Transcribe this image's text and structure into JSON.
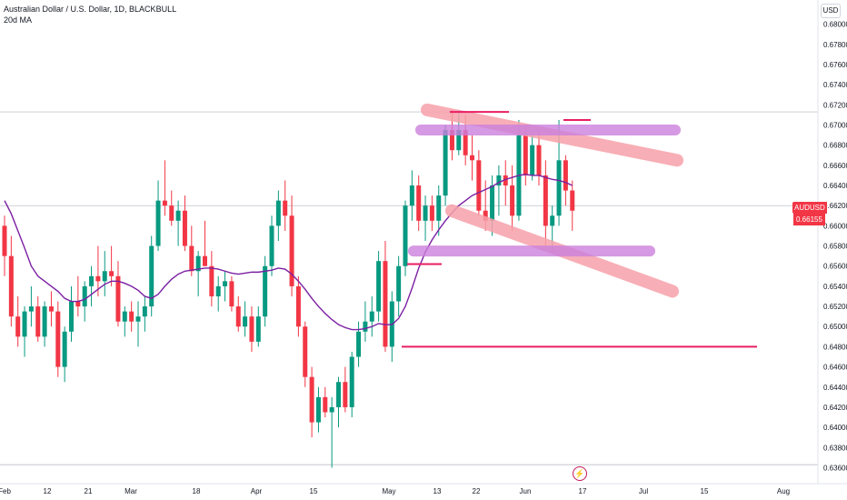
{
  "legend": {
    "title": "Australian Dollar / U.S. Dollar, 1D, BLACKBULL",
    "indicator": "20d MA"
  },
  "currency_button": "USD",
  "price_tag": {
    "symbol": "AUDUSD",
    "value": "0.66155"
  },
  "icons": {
    "flash": "lightning-icon"
  },
  "colors": {
    "up": "#089981",
    "down": "#f23645",
    "ma": "#7b1fa2",
    "pink_band": "#f7a1aa",
    "purple_band": "#cc80dd",
    "red_line": "#e91e63"
  },
  "chart_data": {
    "type": "candlestick",
    "y_axis": {
      "min": 0.6355,
      "max": 0.6815,
      "tick_labels": [
        "0.68000",
        "0.67800",
        "0.67600",
        "0.67400",
        "0.67200",
        "0.67000",
        "0.66800",
        "0.66600",
        "0.66400",
        "0.66200",
        "0.66000",
        "0.65800",
        "0.65600",
        "0.65400",
        "0.65200",
        "0.65000",
        "0.64800",
        "0.64600",
        "0.64400",
        "0.64200",
        "0.64000",
        "0.63800",
        "0.63600",
        "0.63400"
      ]
    },
    "x_axis": {
      "tick_labels": [
        "Feb",
        "12",
        "21",
        "Mar",
        "18",
        "Apr",
        "15",
        "May",
        "13",
        "22",
        "Jun",
        "17",
        "Jul",
        "15",
        "Aug"
      ]
    },
    "candles": [
      {
        "o": 0.66,
        "h": 0.661,
        "l": 0.655,
        "c": 0.657
      },
      {
        "o": 0.657,
        "h": 0.659,
        "l": 0.65,
        "c": 0.651
      },
      {
        "o": 0.651,
        "h": 0.653,
        "l": 0.648,
        "c": 0.649
      },
      {
        "o": 0.649,
        "h": 0.652,
        "l": 0.647,
        "c": 0.6515
      },
      {
        "o": 0.6515,
        "h": 0.654,
        "l": 0.65,
        "c": 0.652
      },
      {
        "o": 0.652,
        "h": 0.653,
        "l": 0.6485,
        "c": 0.649
      },
      {
        "o": 0.649,
        "h": 0.6525,
        "l": 0.648,
        "c": 0.652
      },
      {
        "o": 0.652,
        "h": 0.6535,
        "l": 0.65,
        "c": 0.6515
      },
      {
        "o": 0.6515,
        "h": 0.6525,
        "l": 0.645,
        "c": 0.646
      },
      {
        "o": 0.646,
        "h": 0.65,
        "l": 0.6445,
        "c": 0.6495
      },
      {
        "o": 0.6495,
        "h": 0.654,
        "l": 0.6485,
        "c": 0.6525
      },
      {
        "o": 0.6525,
        "h": 0.655,
        "l": 0.651,
        "c": 0.652
      },
      {
        "o": 0.652,
        "h": 0.6545,
        "l": 0.6505,
        "c": 0.654
      },
      {
        "o": 0.654,
        "h": 0.656,
        "l": 0.652,
        "c": 0.655
      },
      {
        "o": 0.655,
        "h": 0.658,
        "l": 0.653,
        "c": 0.6545
      },
      {
        "o": 0.6545,
        "h": 0.6575,
        "l": 0.653,
        "c": 0.6555
      },
      {
        "o": 0.6555,
        "h": 0.658,
        "l": 0.654,
        "c": 0.655
      },
      {
        "o": 0.655,
        "h": 0.6565,
        "l": 0.65,
        "c": 0.6505
      },
      {
        "o": 0.6505,
        "h": 0.652,
        "l": 0.649,
        "c": 0.6515
      },
      {
        "o": 0.6515,
        "h": 0.6525,
        "l": 0.6495,
        "c": 0.6505
      },
      {
        "o": 0.6505,
        "h": 0.6525,
        "l": 0.648,
        "c": 0.651
      },
      {
        "o": 0.651,
        "h": 0.653,
        "l": 0.6495,
        "c": 0.652
      },
      {
        "o": 0.652,
        "h": 0.659,
        "l": 0.651,
        "c": 0.658
      },
      {
        "o": 0.658,
        "h": 0.6645,
        "l": 0.6575,
        "c": 0.6625
      },
      {
        "o": 0.6625,
        "h": 0.6665,
        "l": 0.661,
        "c": 0.662
      },
      {
        "o": 0.662,
        "h": 0.6635,
        "l": 0.66,
        "c": 0.6605
      },
      {
        "o": 0.6605,
        "h": 0.6625,
        "l": 0.658,
        "c": 0.6615
      },
      {
        "o": 0.6615,
        "h": 0.663,
        "l": 0.6575,
        "c": 0.658
      },
      {
        "o": 0.658,
        "h": 0.66,
        "l": 0.655,
        "c": 0.6555
      },
      {
        "o": 0.6555,
        "h": 0.6575,
        "l": 0.653,
        "c": 0.657
      },
      {
        "o": 0.657,
        "h": 0.6605,
        "l": 0.656,
        "c": 0.656
      },
      {
        "o": 0.656,
        "h": 0.6575,
        "l": 0.652,
        "c": 0.653
      },
      {
        "o": 0.653,
        "h": 0.655,
        "l": 0.6515,
        "c": 0.654
      },
      {
        "o": 0.654,
        "h": 0.6555,
        "l": 0.6525,
        "c": 0.6545
      },
      {
        "o": 0.6545,
        "h": 0.655,
        "l": 0.6515,
        "c": 0.652
      },
      {
        "o": 0.652,
        "h": 0.653,
        "l": 0.6495,
        "c": 0.65
      },
      {
        "o": 0.65,
        "h": 0.6525,
        "l": 0.649,
        "c": 0.651
      },
      {
        "o": 0.651,
        "h": 0.652,
        "l": 0.6475,
        "c": 0.6485
      },
      {
        "o": 0.6485,
        "h": 0.652,
        "l": 0.648,
        "c": 0.651
      },
      {
        "o": 0.651,
        "h": 0.657,
        "l": 0.65,
        "c": 0.656
      },
      {
        "o": 0.656,
        "h": 0.661,
        "l": 0.655,
        "c": 0.66
      },
      {
        "o": 0.66,
        "h": 0.6635,
        "l": 0.6585,
        "c": 0.6625
      },
      {
        "o": 0.6625,
        "h": 0.6645,
        "l": 0.6595,
        "c": 0.661
      },
      {
        "o": 0.661,
        "h": 0.663,
        "l": 0.653,
        "c": 0.654
      },
      {
        "o": 0.654,
        "h": 0.655,
        "l": 0.649,
        "c": 0.65
      },
      {
        "o": 0.65,
        "h": 0.6505,
        "l": 0.644,
        "c": 0.645
      },
      {
        "o": 0.645,
        "h": 0.646,
        "l": 0.639,
        "c": 0.6405
      },
      {
        "o": 0.6405,
        "h": 0.644,
        "l": 0.6395,
        "c": 0.643
      },
      {
        "o": 0.643,
        "h": 0.644,
        "l": 0.641,
        "c": 0.6415
      },
      {
        "o": 0.6415,
        "h": 0.643,
        "l": 0.636,
        "c": 0.642
      },
      {
        "o": 0.642,
        "h": 0.645,
        "l": 0.64,
        "c": 0.6445
      },
      {
        "o": 0.6445,
        "h": 0.646,
        "l": 0.6415,
        "c": 0.642
      },
      {
        "o": 0.642,
        "h": 0.6475,
        "l": 0.641,
        "c": 0.647
      },
      {
        "o": 0.647,
        "h": 0.6505,
        "l": 0.646,
        "c": 0.6495
      },
      {
        "o": 0.6495,
        "h": 0.6525,
        "l": 0.6485,
        "c": 0.6505
      },
      {
        "o": 0.6505,
        "h": 0.653,
        "l": 0.649,
        "c": 0.6515
      },
      {
        "o": 0.6515,
        "h": 0.6575,
        "l": 0.6505,
        "c": 0.6565
      },
      {
        "o": 0.6565,
        "h": 0.6585,
        "l": 0.6475,
        "c": 0.648
      },
      {
        "o": 0.648,
        "h": 0.6535,
        "l": 0.6465,
        "c": 0.6525
      },
      {
        "o": 0.6525,
        "h": 0.657,
        "l": 0.651,
        "c": 0.656
      },
      {
        "o": 0.656,
        "h": 0.6625,
        "l": 0.655,
        "c": 0.662
      },
      {
        "o": 0.662,
        "h": 0.6655,
        "l": 0.6605,
        "c": 0.664
      },
      {
        "o": 0.664,
        "h": 0.665,
        "l": 0.6595,
        "c": 0.6605
      },
      {
        "o": 0.6605,
        "h": 0.663,
        "l": 0.6585,
        "c": 0.662
      },
      {
        "o": 0.662,
        "h": 0.663,
        "l": 0.6595,
        "c": 0.6605
      },
      {
        "o": 0.6605,
        "h": 0.664,
        "l": 0.659,
        "c": 0.663
      },
      {
        "o": 0.663,
        "h": 0.67,
        "l": 0.662,
        "c": 0.6695
      },
      {
        "o": 0.6695,
        "h": 0.6715,
        "l": 0.6665,
        "c": 0.6675
      },
      {
        "o": 0.6675,
        "h": 0.6715,
        "l": 0.667,
        "c": 0.6695
      },
      {
        "o": 0.6695,
        "h": 0.671,
        "l": 0.666,
        "c": 0.667
      },
      {
        "o": 0.667,
        "h": 0.669,
        "l": 0.6645,
        "c": 0.6665
      },
      {
        "o": 0.6665,
        "h": 0.6675,
        "l": 0.661,
        "c": 0.6615
      },
      {
        "o": 0.6615,
        "h": 0.6645,
        "l": 0.6595,
        "c": 0.6605
      },
      {
        "o": 0.6605,
        "h": 0.665,
        "l": 0.659,
        "c": 0.664
      },
      {
        "o": 0.664,
        "h": 0.666,
        "l": 0.661,
        "c": 0.665
      },
      {
        "o": 0.665,
        "h": 0.6665,
        "l": 0.662,
        "c": 0.664
      },
      {
        "o": 0.664,
        "h": 0.666,
        "l": 0.6595,
        "c": 0.661
      },
      {
        "o": 0.661,
        "h": 0.6705,
        "l": 0.6605,
        "c": 0.669
      },
      {
        "o": 0.669,
        "h": 0.67,
        "l": 0.664,
        "c": 0.665
      },
      {
        "o": 0.665,
        "h": 0.669,
        "l": 0.6645,
        "c": 0.668
      },
      {
        "o": 0.668,
        "h": 0.6695,
        "l": 0.664,
        "c": 0.665
      },
      {
        "o": 0.665,
        "h": 0.6665,
        "l": 0.658,
        "c": 0.66
      },
      {
        "o": 0.66,
        "h": 0.662,
        "l": 0.6575,
        "c": 0.661
      },
      {
        "o": 0.661,
        "h": 0.6705,
        "l": 0.66,
        "c": 0.6665
      },
      {
        "o": 0.6665,
        "h": 0.667,
        "l": 0.662,
        "c": 0.6635
      },
      {
        "o": 0.6635,
        "h": 0.6645,
        "l": 0.6595,
        "c": 0.6615
      }
    ],
    "ma20": [
      0.6625,
      0.6612,
      0.6595,
      0.6578,
      0.656,
      0.655,
      0.6545,
      0.654,
      0.6535,
      0.6528,
      0.6525,
      0.6525,
      0.6527,
      0.6532,
      0.6537,
      0.6542,
      0.6545,
      0.6545,
      0.6543,
      0.654,
      0.6536,
      0.653,
      0.6528,
      0.6532,
      0.654,
      0.6547,
      0.6552,
      0.6555,
      0.6556,
      0.6557,
      0.6558,
      0.6558,
      0.6557,
      0.6555,
      0.6553,
      0.6552,
      0.6553,
      0.6554,
      0.6554,
      0.6555,
      0.6556,
      0.6558,
      0.6557,
      0.6552,
      0.6545,
      0.6537,
      0.6528,
      0.652,
      0.6513,
      0.6507,
      0.6502,
      0.6499,
      0.6497,
      0.6497,
      0.6498,
      0.65,
      0.6503,
      0.6502,
      0.6502,
      0.6508,
      0.652,
      0.6538,
      0.6558,
      0.6574,
      0.6586,
      0.6596,
      0.6605,
      0.6613,
      0.662,
      0.6625,
      0.663,
      0.6633,
      0.6636,
      0.6639,
      0.6643,
      0.6646,
      0.6648,
      0.665,
      0.6651,
      0.665,
      0.665,
      0.6648,
      0.6646,
      0.6645,
      0.6643,
      0.664
    ],
    "annotations": {
      "pink_upper_band": [
        [
          0.6715,
          0.67
        ],
        [
          0.6665,
          0.67
        ]
      ],
      "pink_lower_band": [
        [
          0.6615,
          0.6555
        ],
        [
          0.6535,
          0.6555
        ]
      ],
      "purple_upper_zone": 0.6695,
      "purple_lower_zone": 0.6575,
      "red_horizontal": 0.648,
      "thin_lines": [
        0.6713,
        0.662,
        0.6363
      ]
    }
  }
}
